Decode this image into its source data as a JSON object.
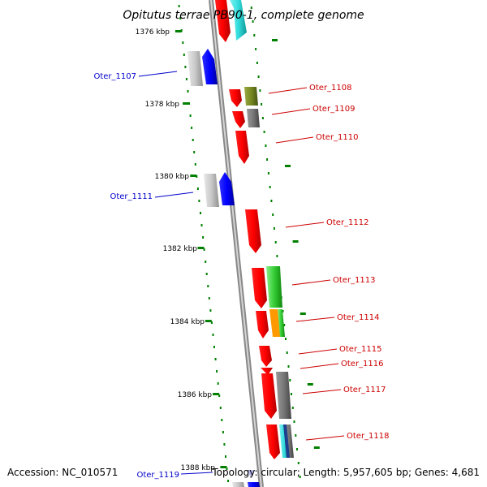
{
  "title": "Opitutus terrae PB90-1, complete genome",
  "accession": "Accession: NC_010571",
  "topology_line": "Topology: circular; Length: 5,957,605 bp; Genes: 4,681",
  "kbp_labels": [
    "1376 kbp",
    "1378 kbp",
    "1380 kbp",
    "1382 kbp",
    "1384 kbp",
    "1386 kbp",
    "1388 kbp"
  ],
  "genes": [
    {
      "name": "Oter_1107",
      "color": "#0000cc"
    },
    {
      "name": "Oter_1108",
      "color": "#cc0000"
    },
    {
      "name": "Oter_1109",
      "color": "#cc0000"
    },
    {
      "name": "Oter_1110",
      "color": "#cc0000"
    },
    {
      "name": "Oter_1111",
      "color": "#0000cc"
    },
    {
      "name": "Oter_1112",
      "color": "#cc0000"
    },
    {
      "name": "Oter_1113",
      "color": "#cc0000"
    },
    {
      "name": "Oter_1114",
      "color": "#cc0000"
    },
    {
      "name": "Oter_1115",
      "color": "#cc0000"
    },
    {
      "name": "Oter_1116",
      "color": "#cc0000"
    },
    {
      "name": "Oter_1117",
      "color": "#cc0000"
    },
    {
      "name": "Oter_1118",
      "color": "#cc0000"
    },
    {
      "name": "Oter_1119",
      "color": "#0000cc"
    }
  ],
  "colors": {
    "forward_cds": "#ff0000",
    "reverse_cds": "#0000ff",
    "rna": "#00cccc",
    "gc_skew_tick": "#008000",
    "backbone": "#999999"
  }
}
